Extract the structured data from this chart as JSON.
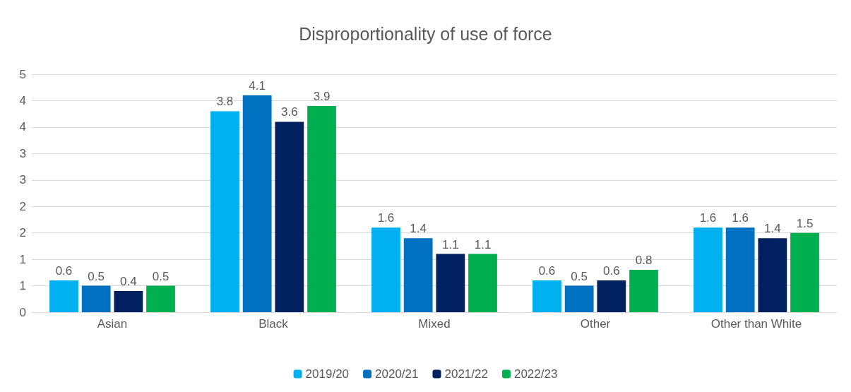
{
  "chart_data": {
    "type": "bar",
    "title": "Disproportionality of use of force",
    "categories": [
      "Asian",
      "Black",
      "Mixed",
      "Other",
      "Other than White"
    ],
    "series": [
      {
        "name": "2019/20",
        "color": "#00b0f0",
        "values": [
          0.6,
          3.8,
          1.6,
          0.6,
          1.6
        ]
      },
      {
        "name": "2020/21",
        "color": "#0070c0",
        "values": [
          0.5,
          4.1,
          1.4,
          0.5,
          1.6
        ]
      },
      {
        "name": "2021/22",
        "color": "#002060",
        "values": [
          0.4,
          3.6,
          1.1,
          0.6,
          1.4
        ]
      },
      {
        "name": "2022/23",
        "color": "#00b050",
        "values": [
          0.5,
          3.9,
          1.1,
          0.8,
          1.5
        ]
      }
    ],
    "ylim": [
      0,
      4.5
    ],
    "yticks": [
      0,
      {
        "value": 0.5,
        "label": "1"
      },
      1,
      {
        "value": 1.5,
        "label": "2"
      },
      2,
      {
        "value": 2.5,
        "label": "3"
      },
      3,
      {
        "value": 3.5,
        "label": "4"
      },
      4,
      {
        "value": 4.5,
        "label": "5"
      }
    ],
    "grid": "y",
    "legend": "bottom",
    "data_labels": true
  }
}
